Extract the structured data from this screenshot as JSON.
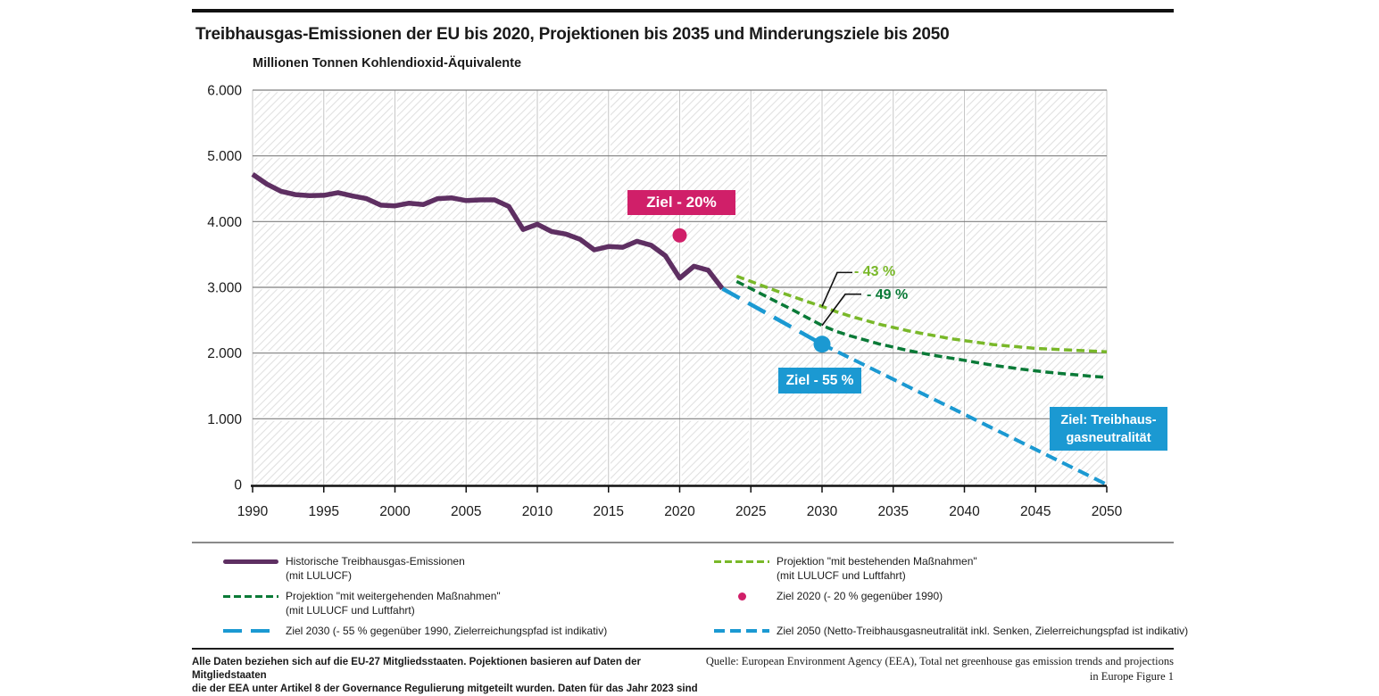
{
  "header": {
    "title": "Treibhausgas-Emissionen der EU bis 2020, Projektionen bis 2035 und Minderungsziele bis 2050",
    "unit_label": "Millionen Tonnen Kohlendioxid-Äquivalente"
  },
  "chart_data": {
    "type": "line",
    "title": "Treibhausgas-Emissionen der EU bis 2020, Projektionen bis 2035 und Minderungsziele bis 2050",
    "ylabel": "Millionen Tonnen Kohlendioxid-Äquivalente",
    "ylim": [
      0,
      6000
    ],
    "xlim": [
      1990,
      2050
    ],
    "grid": true,
    "legend_position": "bottom",
    "y_ticks": [
      {
        "value": 0,
        "label": "0"
      },
      {
        "value": 1000,
        "label": "1.000"
      },
      {
        "value": 2000,
        "label": "2.000"
      },
      {
        "value": 3000,
        "label": "3.000"
      },
      {
        "value": 4000,
        "label": "4.000"
      },
      {
        "value": 5000,
        "label": "5.000"
      },
      {
        "value": 6000,
        "label": "6.000"
      }
    ],
    "x_ticks": [
      {
        "value": 1990,
        "label": "1990"
      },
      {
        "value": 1995,
        "label": "1995"
      },
      {
        "value": 2000,
        "label": "2000"
      },
      {
        "value": 2005,
        "label": "2005"
      },
      {
        "value": 2010,
        "label": "2010"
      },
      {
        "value": 2015,
        "label": "2015"
      },
      {
        "value": 2020,
        "label": "2020"
      },
      {
        "value": 2025,
        "label": "2025"
      },
      {
        "value": 2030,
        "label": "2030"
      },
      {
        "value": 2035,
        "label": "2035"
      },
      {
        "value": 2040,
        "label": "2040"
      },
      {
        "value": 2045,
        "label": "2045"
      },
      {
        "value": 2050,
        "label": "2050"
      }
    ],
    "series": [
      {
        "name": "Historische Treibhausgas-Emissionen (mit LULUCF)",
        "color": "#5e2f62",
        "style": "solid",
        "x": [
          1990,
          1991,
          1992,
          1993,
          1994,
          1995,
          1996,
          1997,
          1998,
          1999,
          2000,
          2001,
          2002,
          2003,
          2004,
          2005,
          2006,
          2007,
          2008,
          2009,
          2010,
          2011,
          2012,
          2013,
          2014,
          2015,
          2016,
          2017,
          2018,
          2019,
          2020,
          2021,
          2022,
          2023
        ],
        "values": [
          4720,
          4570,
          4460,
          4410,
          4395,
          4400,
          4440,
          4390,
          4350,
          4250,
          4240,
          4280,
          4260,
          4350,
          4360,
          4320,
          4330,
          4330,
          4230,
          3880,
          3960,
          3850,
          3810,
          3730,
          3570,
          3620,
          3610,
          3700,
          3640,
          3480,
          3140,
          3320,
          3260,
          2980
        ]
      },
      {
        "name": "Projektion \"mit bestehenden Maßnahmen\" (mit LULUCF und Luftfahrt)",
        "color": "#79b829",
        "style": "dashed",
        "x": [
          2024,
          2025,
          2026,
          2027,
          2028,
          2029,
          2030,
          2031,
          2032,
          2033,
          2034,
          2035,
          2036,
          2037,
          2038,
          2039,
          2040,
          2041,
          2042,
          2043,
          2044,
          2045,
          2046,
          2047,
          2048,
          2049,
          2050
        ],
        "values": [
          3170,
          3090,
          3010,
          2930,
          2855,
          2780,
          2710,
          2630,
          2560,
          2500,
          2440,
          2390,
          2340,
          2300,
          2260,
          2220,
          2190,
          2160,
          2130,
          2110,
          2090,
          2070,
          2060,
          2050,
          2040,
          2030,
          2020
        ]
      },
      {
        "name": "Projektion \"mit weitergehenden Maßnahmen\" (mit LULUCF und Luftfahrt)",
        "color": "#0a7a37",
        "style": "dashed",
        "x": [
          2024,
          2025,
          2026,
          2027,
          2028,
          2029,
          2030,
          2031,
          2032,
          2033,
          2034,
          2035,
          2036,
          2037,
          2038,
          2039,
          2040,
          2041,
          2042,
          2043,
          2044,
          2045,
          2046,
          2047,
          2048,
          2049,
          2050
        ],
        "values": [
          3090,
          2980,
          2870,
          2760,
          2650,
          2535,
          2420,
          2330,
          2260,
          2200,
          2140,
          2090,
          2040,
          2000,
          1960,
          1925,
          1890,
          1850,
          1815,
          1785,
          1755,
          1730,
          1705,
          1685,
          1665,
          1645,
          1630
        ]
      },
      {
        "name": "Ziel 2030 (- 55 % gegenüber 1990, Zielerreichungspfad ist indikativ)",
        "color": "#1b99d2",
        "style": "longdash",
        "x": [
          2023,
          2030
        ],
        "values": [
          2980,
          2135
        ]
      },
      {
        "name": "Ziel 2050 (Netto-Treibhausgasneutralität inkl. Senken, Zielerreichungspfad ist indikativ)",
        "color": "#1b99d2",
        "style": "dash",
        "x": [
          2030,
          2050
        ],
        "values": [
          2135,
          0
        ]
      }
    ],
    "points": [
      {
        "name": "Ziel 2020 (- 20 % gegenüber 1990)",
        "x": 2020,
        "value": 3790,
        "color": "#d01f69"
      },
      {
        "name": "Ziel 2030 (- 55 % gegenüber 1990)",
        "x": 2030,
        "value": 2135,
        "color": "#1b99d2"
      }
    ],
    "annotations": [
      {
        "text": "- 43 %",
        "color": "#79b829",
        "points_to": {
          "x": 2030,
          "value": 2710
        }
      },
      {
        "text": "- 49 %",
        "color": "#0a7a37",
        "points_to": {
          "x": 2030,
          "value": 2420
        }
      }
    ]
  },
  "badges": {
    "ziel20": "Ziel - 20%",
    "ziel55": "Ziel - 55 %",
    "neutral_line1": "Ziel: Treibhaus-",
    "neutral_line2": "gasneutralität"
  },
  "legend": {
    "left": [
      {
        "label": "Historische Treibhausgas-Emissionen",
        "sublabel": "(mit LULUCF)"
      },
      {
        "label": "Projektion \"mit weitergehenden Maßnahmen\"",
        "sublabel": "(mit LULUCF und Luftfahrt)"
      },
      {
        "label": "Ziel 2030 (- 55 % gegenüber 1990, Zielerreichungspfad ist indikativ)",
        "sublabel": ""
      }
    ],
    "right": [
      {
        "label": "Projektion \"mit bestehenden Maßnahmen\"",
        "sublabel": "(mit LULUCF und Luftfahrt)"
      },
      {
        "label": "Ziel 2020 (- 20 % gegenüber 1990)",
        "sublabel": ""
      },
      {
        "label": "Ziel 2050 (Netto-Treibhausgasneutralität inkl. Senken, Zielerreichungspfad ist indikativ)",
        "sublabel": ""
      }
    ]
  },
  "footer": {
    "left_line1": "Alle Daten beziehen sich auf die EU-27 Mitgliedsstaaten. Pojektionen basieren auf Daten der Mitgliedstaaten",
    "left_line2": "die der EEA unter Artikel 8 der Governance Regulierung mitgeteilt wurden. Daten für das Jahr 2023 sind",
    "right_line1": "Quelle: European Environment Agency (EEA), Total net greenhouse gas emission trends and projections",
    "right_line2": "in Europe Figure 1"
  },
  "colors": {
    "historical": "#5e2f62",
    "projection_existing": "#79b829",
    "projection_additional": "#0a7a37",
    "target_blue": "#1b99d2",
    "target_pink": "#d01f69"
  }
}
